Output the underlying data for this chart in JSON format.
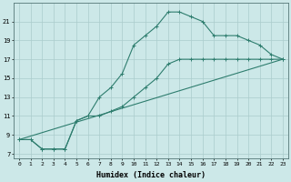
{
  "line1_x": [
    0,
    1,
    2,
    3,
    4,
    5,
    6,
    7,
    8,
    9,
    10,
    11,
    12,
    13,
    14,
    15,
    16,
    17,
    18,
    19,
    20,
    21,
    22,
    23
  ],
  "line1_y": [
    8.5,
    8.5,
    7.5,
    7.5,
    7.5,
    10.5,
    11.0,
    13.0,
    14.0,
    15.5,
    18.5,
    19.5,
    20.5,
    22.0,
    22.0,
    21.5,
    21.0,
    19.5,
    19.5,
    19.5,
    19.0,
    18.5,
    17.5,
    17.0
  ],
  "line2_x": [
    0,
    1,
    2,
    3,
    4,
    5,
    6,
    7,
    8,
    9,
    10,
    11,
    12,
    13,
    14,
    15,
    16,
    17,
    18,
    19,
    20,
    21,
    22,
    23
  ],
  "line2_y": [
    8.5,
    8.5,
    7.5,
    7.5,
    7.5,
    10.5,
    11.0,
    11.0,
    11.5,
    12.0,
    13.0,
    14.0,
    15.0,
    16.5,
    17.0,
    17.0,
    17.0,
    17.0,
    17.0,
    17.0,
    17.0,
    17.0,
    17.0,
    17.0
  ],
  "line3_x": [
    0,
    23
  ],
  "line3_y": [
    8.5,
    17.0
  ],
  "line_color": "#2e7d6e",
  "bg_color": "#cce8e8",
  "grid_major_color": "#aacccc",
  "grid_minor_color": "#bbdddd",
  "xlabel": "Humidex (Indice chaleur)",
  "xlim": [
    -0.5,
    23.5
  ],
  "ylim": [
    6.5,
    23.0
  ],
  "yticks": [
    7,
    9,
    11,
    13,
    15,
    17,
    19,
    21
  ],
  "xticks": [
    0,
    1,
    2,
    3,
    4,
    5,
    6,
    7,
    8,
    9,
    10,
    11,
    12,
    13,
    14,
    15,
    16,
    17,
    18,
    19,
    20,
    21,
    22,
    23
  ],
  "xtick_labels": [
    "0",
    "1",
    "2",
    "3",
    "4",
    "5",
    "6",
    "7",
    "8",
    "9",
    "10",
    "11",
    "12",
    "13",
    "14",
    "15",
    "16",
    "17",
    "18",
    "19",
    "20",
    "21",
    "22",
    "23"
  ]
}
